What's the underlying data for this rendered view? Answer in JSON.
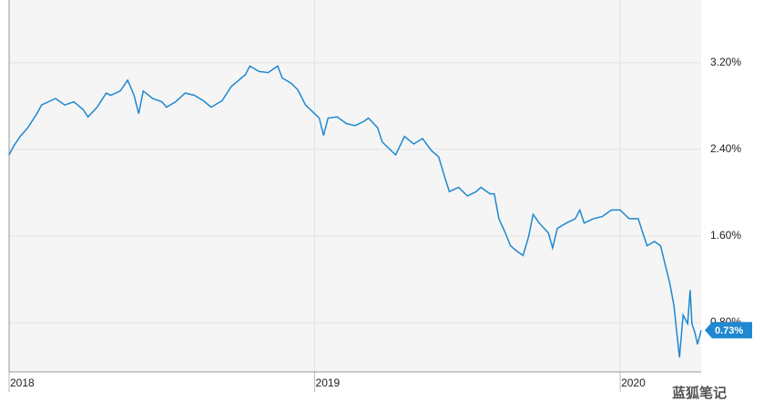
{
  "chart_data": {
    "type": "line",
    "x": [
      2018.0,
      2018.015,
      2018.036,
      2018.061,
      2018.091,
      2018.106,
      2018.136,
      2018.152,
      2018.182,
      2018.212,
      2018.242,
      2018.258,
      2018.288,
      2018.318,
      2018.333,
      2018.364,
      2018.388,
      2018.409,
      2018.424,
      2018.439,
      2018.47,
      2018.5,
      2018.515,
      2018.545,
      2018.576,
      2018.606,
      2018.636,
      2018.661,
      2018.697,
      2018.727,
      2018.752,
      2018.773,
      2018.788,
      2018.818,
      2018.848,
      2018.879,
      2018.894,
      2018.924,
      2018.945,
      2018.97,
      2019.0,
      2019.015,
      2019.029,
      2019.044,
      2019.074,
      2019.103,
      2019.132,
      2019.162,
      2019.176,
      2019.206,
      2019.221,
      2019.25,
      2019.265,
      2019.294,
      2019.324,
      2019.353,
      2019.382,
      2019.406,
      2019.426,
      2019.441,
      2019.471,
      2019.5,
      2019.529,
      2019.544,
      2019.574,
      2019.588,
      2019.603,
      2019.624,
      2019.641,
      2019.662,
      2019.682,
      2019.7,
      2019.715,
      2019.735,
      2019.765,
      2019.779,
      2019.794,
      2019.824,
      2019.853,
      2019.868,
      2019.882,
      2019.912,
      2019.941,
      2019.971,
      2020.0,
      2020.029,
      2020.059,
      2020.074,
      2020.088,
      2020.112,
      2020.132,
      2020.147,
      2020.162,
      2020.176,
      2020.185,
      2020.194,
      2020.206,
      2020.221,
      2020.229,
      2020.235,
      2020.244,
      2020.253,
      2020.265
    ],
    "series": [
      {
        "color": "#1f88d0",
        "values": [
          2.35,
          2.43,
          2.52,
          2.6,
          2.73,
          2.81,
          2.85,
          2.87,
          2.81,
          2.84,
          2.77,
          2.7,
          2.79,
          2.92,
          2.9,
          2.94,
          3.04,
          2.9,
          2.73,
          2.94,
          2.87,
          2.84,
          2.79,
          2.84,
          2.92,
          2.9,
          2.85,
          2.79,
          2.85,
          2.98,
          3.04,
          3.09,
          3.17,
          3.12,
          3.11,
          3.17,
          3.06,
          3.01,
          2.95,
          2.81,
          2.73,
          2.69,
          2.53,
          2.69,
          2.7,
          2.64,
          2.62,
          2.66,
          2.69,
          2.6,
          2.47,
          2.39,
          2.35,
          2.52,
          2.45,
          2.5,
          2.39,
          2.33,
          2.14,
          2.01,
          2.05,
          1.97,
          2.01,
          2.05,
          1.99,
          1.99,
          1.76,
          1.63,
          1.51,
          1.46,
          1.42,
          1.59,
          1.8,
          1.72,
          1.63,
          1.49,
          1.67,
          1.72,
          1.76,
          1.84,
          1.72,
          1.76,
          1.78,
          1.84,
          1.84,
          1.76,
          1.76,
          1.63,
          1.51,
          1.55,
          1.51,
          1.34,
          1.17,
          0.96,
          0.71,
          0.48,
          0.87,
          0.79,
          1.1,
          0.79,
          0.71,
          0.6,
          0.73
        ]
      }
    ],
    "xlim": [
      2018,
      2020.265
    ],
    "xticks": [
      2018,
      2019,
      2020
    ],
    "ylim": [
      0.345,
      3.78
    ],
    "yticks": [
      {
        "value": 0.8,
        "label": "0.80%"
      },
      {
        "value": 1.6,
        "label": "1.60%"
      },
      {
        "value": 2.4,
        "label": "2.40%"
      },
      {
        "value": 3.2,
        "label": "3.20%"
      }
    ],
    "grid": true,
    "annotation": {
      "value": 0.73,
      "label": "0.73%"
    },
    "watermark": "蓝狐笔记"
  }
}
